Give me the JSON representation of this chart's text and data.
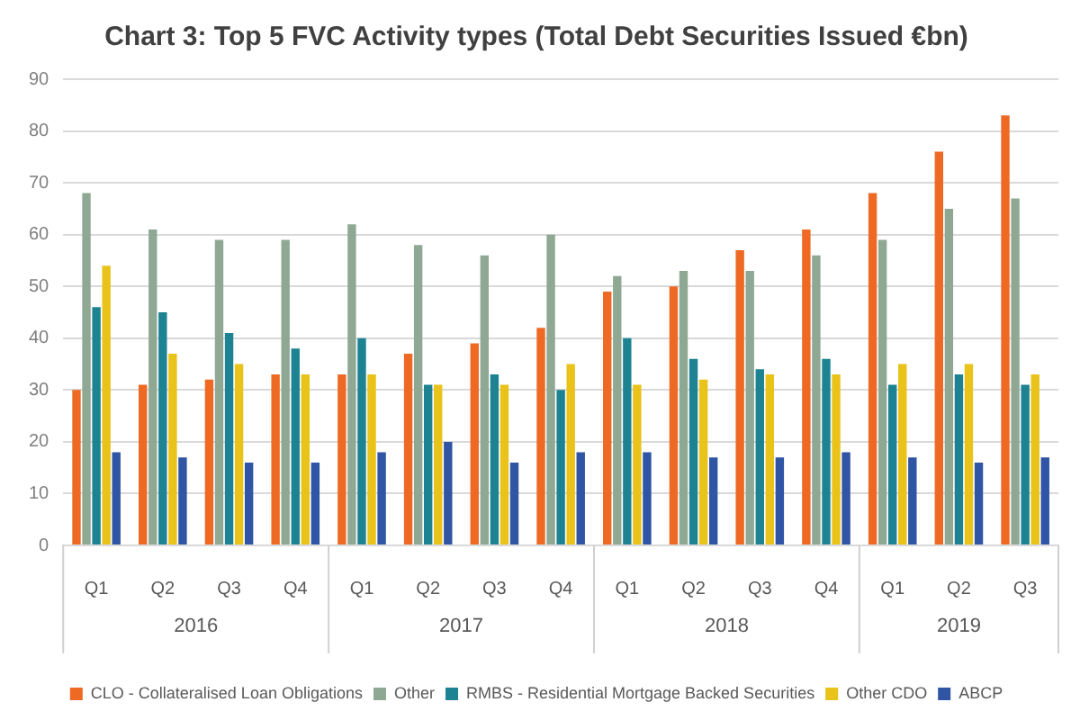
{
  "chart_data": {
    "type": "bar",
    "title": "Chart 3: Top 5 FVC Activity types (Total Debt Securities Issued €bn)",
    "categories": [
      "Q1",
      "Q2",
      "Q3",
      "Q4",
      "Q1",
      "Q2",
      "Q3",
      "Q4",
      "Q1",
      "Q2",
      "Q3",
      "Q4",
      "Q1",
      "Q2",
      "Q3"
    ],
    "annotations": [
      "2016",
      "2017",
      "2018",
      "2019"
    ],
    "series": [
      {
        "name": "CLO - Collateralised Loan Obligations",
        "color": "#ee6a24",
        "values": [
          30,
          31,
          32,
          33,
          33,
          37,
          39,
          42,
          49,
          50,
          57,
          61,
          68,
          76,
          83
        ]
      },
      {
        "name": "Other",
        "color": "#8fa894",
        "values": [
          68,
          61,
          59,
          59,
          62,
          58,
          56,
          60,
          52,
          53,
          53,
          56,
          59,
          65,
          67
        ]
      },
      {
        "name": "RMBS - Residential Mortgage Backed Securities",
        "color": "#1d8392",
        "values": [
          46,
          45,
          41,
          38,
          40,
          31,
          33,
          30,
          40,
          36,
          34,
          36,
          31,
          33,
          31
        ]
      },
      {
        "name": "Other CDO",
        "color": "#e9c21a",
        "values": [
          54,
          37,
          35,
          33,
          33,
          31,
          31,
          35,
          31,
          32,
          33,
          33,
          35,
          35,
          33
        ]
      },
      {
        "name": "ABCP",
        "color": "#2f55a4",
        "values": [
          18,
          17,
          16,
          16,
          18,
          20,
          16,
          18,
          18,
          17,
          17,
          18,
          17,
          16,
          17
        ]
      }
    ],
    "ylim": [
      0,
      90
    ],
    "yticks": [
      0,
      10,
      20,
      30,
      40,
      50,
      60,
      70,
      80,
      90
    ],
    "grid": "y",
    "legend": "bottom"
  }
}
